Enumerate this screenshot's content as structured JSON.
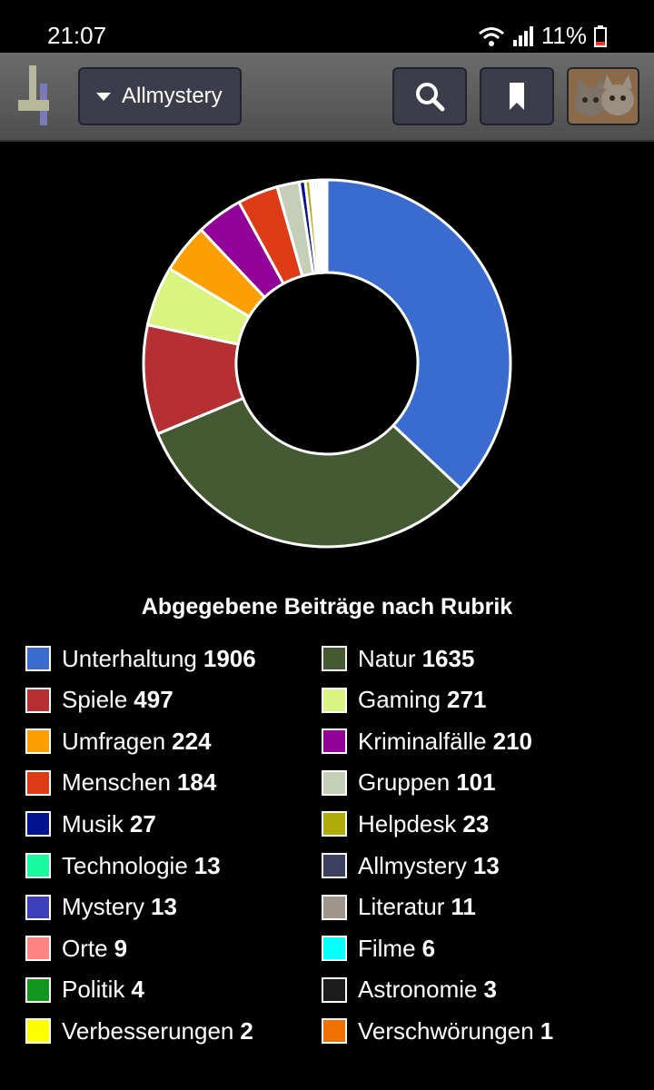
{
  "status_bar": {
    "time": "21:07",
    "battery": "11%"
  },
  "header": {
    "dropdown_label": "Allmystery",
    "icons": {
      "logo": "allmystery-logo-icon",
      "search": "search-icon",
      "bookmark": "bookmark-icon",
      "avatar": "cat-avatar"
    }
  },
  "chart_data": {
    "type": "pie",
    "style": "donut",
    "title": "Abgegebene Beiträge nach Rubrik",
    "legend_placement": "bottom",
    "slices": [
      {
        "label": "Unterhaltung",
        "value": 1906,
        "color": "#3a6bce"
      },
      {
        "label": "Natur",
        "value": 1635,
        "color": "#435a33"
      },
      {
        "label": "Spiele",
        "value": 497,
        "color": "#b62f32"
      },
      {
        "label": "Gaming",
        "value": 271,
        "color": "#d9f57f"
      },
      {
        "label": "Umfragen",
        "value": 224,
        "color": "#fc9f05"
      },
      {
        "label": "Kriminalfälle",
        "value": 210,
        "color": "#920299"
      },
      {
        "label": "Menschen",
        "value": 184,
        "color": "#dd3a15"
      },
      {
        "label": "Gruppen",
        "value": 101,
        "color": "#c5cfb7"
      },
      {
        "label": "Musik",
        "value": 27,
        "color": "#04138f"
      },
      {
        "label": "Helpdesk",
        "value": 23,
        "color": "#aeab0b"
      },
      {
        "label": "Technologie",
        "value": 13,
        "color": "#19fa9e"
      },
      {
        "label": "Allmystery",
        "value": 13,
        "color": "#3e4060"
      },
      {
        "label": "Mystery",
        "value": 13,
        "color": "#3d40b8"
      },
      {
        "label": "Literatur",
        "value": 11,
        "color": "#9f958a"
      },
      {
        "label": "Orte",
        "value": 9,
        "color": "#ff8585"
      },
      {
        "label": "Filme",
        "value": 6,
        "color": "#07fffe"
      },
      {
        "label": "Politik",
        "value": 4,
        "color": "#12961d"
      },
      {
        "label": "Astronomie",
        "value": 3,
        "color": "#1c1c1c"
      },
      {
        "label": "Verbesserungen",
        "value": 2,
        "color": "#fffe00"
      },
      {
        "label": "Verschwörungen",
        "value": 1,
        "color": "#f07102"
      }
    ]
  }
}
